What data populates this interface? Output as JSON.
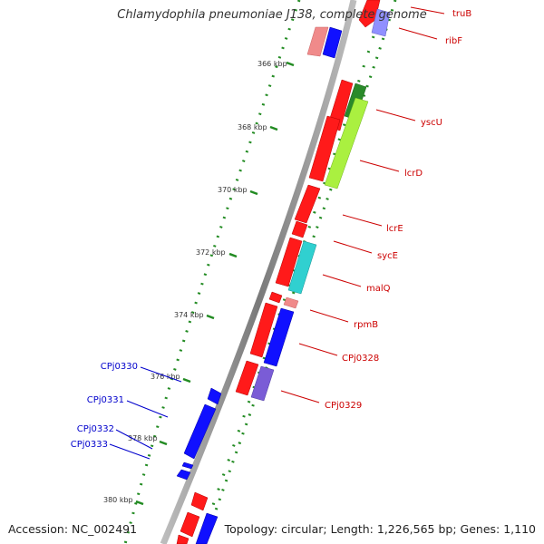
{
  "title": "Chlamydophila pneumoniae J138, complete genome",
  "footer": {
    "accession": "Accession: NC_002491",
    "summary": "Topology: circular; Length: 1,226,565 bp; Genes: 1,110"
  },
  "colors": {
    "backbone": "#8a8a8a",
    "forward": "#ff0000",
    "reverse": "#0000ff",
    "tick": "#228b22",
    "label_right": "#cc0000",
    "label_left": "#0000cc"
  },
  "ticks": [
    "366 kbp",
    "368 kbp",
    "370 kbp",
    "372 kbp",
    "374 kbp",
    "376 kbp",
    "378 kbp",
    "380 kbp"
  ],
  "right_labels": [
    "truB",
    "ribF",
    "yscU",
    "lcrD",
    "lcrE",
    "sycE",
    "malQ",
    "rpmB",
    "CPj0328",
    "CPj0329"
  ],
  "left_labels": [
    "CPj0330",
    "CPj0331",
    "CPj0332",
    "CPj0333"
  ]
}
